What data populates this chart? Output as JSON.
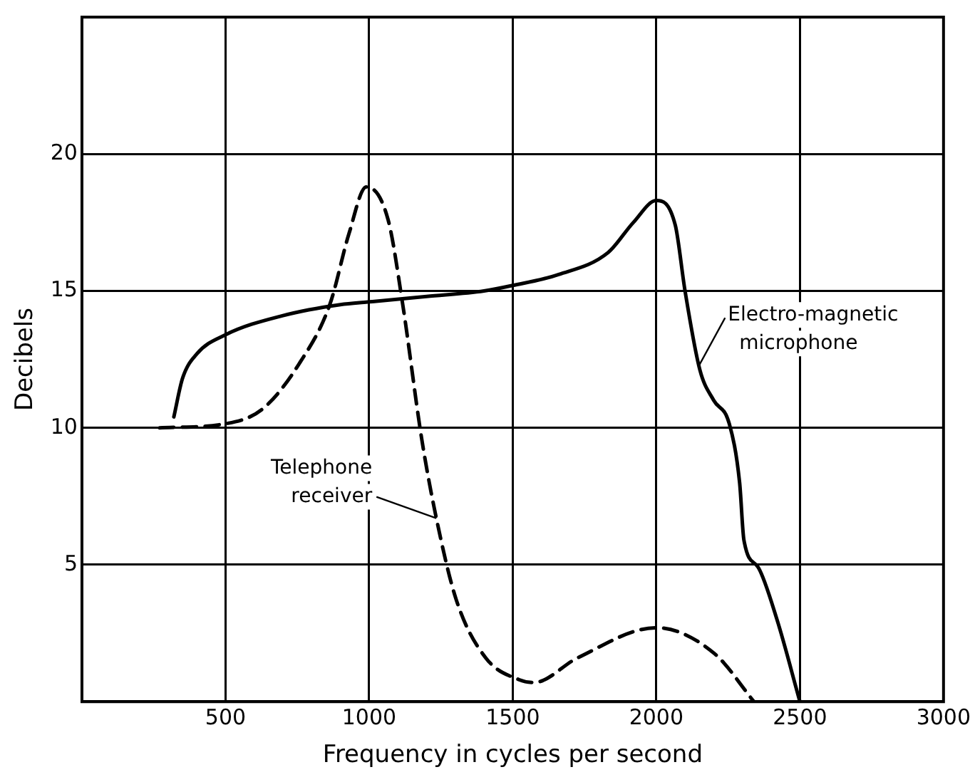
{
  "chart_data": {
    "type": "line",
    "xlabel": "Frequency in cycles per second",
    "ylabel": "Decibels",
    "xlim": [
      0,
      3000
    ],
    "xticks": [
      500,
      1000,
      1500,
      2000,
      2500,
      3000
    ],
    "ylim": [
      0,
      25
    ],
    "yticks": [
      5,
      10,
      15,
      20
    ],
    "grid": true,
    "legend": false,
    "marker": "none",
    "series": [
      {
        "color": "#000000",
        "line_style": "solid",
        "x": [
          320,
          350,
          400,
          500,
          700,
          900,
          1000,
          1200,
          1400,
          1500,
          1660,
          1832,
          1920,
          2000,
          2066,
          2100,
          2152,
          2200,
          2254,
          2290,
          2305,
          2355,
          2420,
          2500
        ],
        "values": [
          10.4,
          11.8,
          12.7,
          13.4,
          14.1,
          14.5,
          14.6,
          14.8,
          15.0,
          15.2,
          15.6,
          16.4,
          17.5,
          18.3,
          17.4,
          15.0,
          12.1,
          11.0,
          10.15,
          8.0,
          5.9,
          4.9,
          3.0,
          0
        ]
      },
      {
        "color": "#000000",
        "line_style": "dashed",
        "x": [
          270,
          500,
          630,
          760,
          863,
          930,
          990,
          1066,
          1117,
          1183,
          1234,
          1304,
          1406,
          1523,
          1574,
          1726,
          2000,
          2203,
          2340
        ],
        "values": [
          10.0,
          10.15,
          10.7,
          12.4,
          14.5,
          17.1,
          18.8,
          17.6,
          14.5,
          9.6,
          6.7,
          3.7,
          1.6,
          0.8,
          0.7,
          1.6,
          2.7,
          1.75,
          0
        ]
      }
    ],
    "annotations": [
      {
        "text": "Telephone receiver",
        "x": 1234,
        "y": 6.7
      },
      {
        "text": "Electro-magnetic microphone",
        "x": 2150,
        "y": 12.3
      }
    ]
  }
}
